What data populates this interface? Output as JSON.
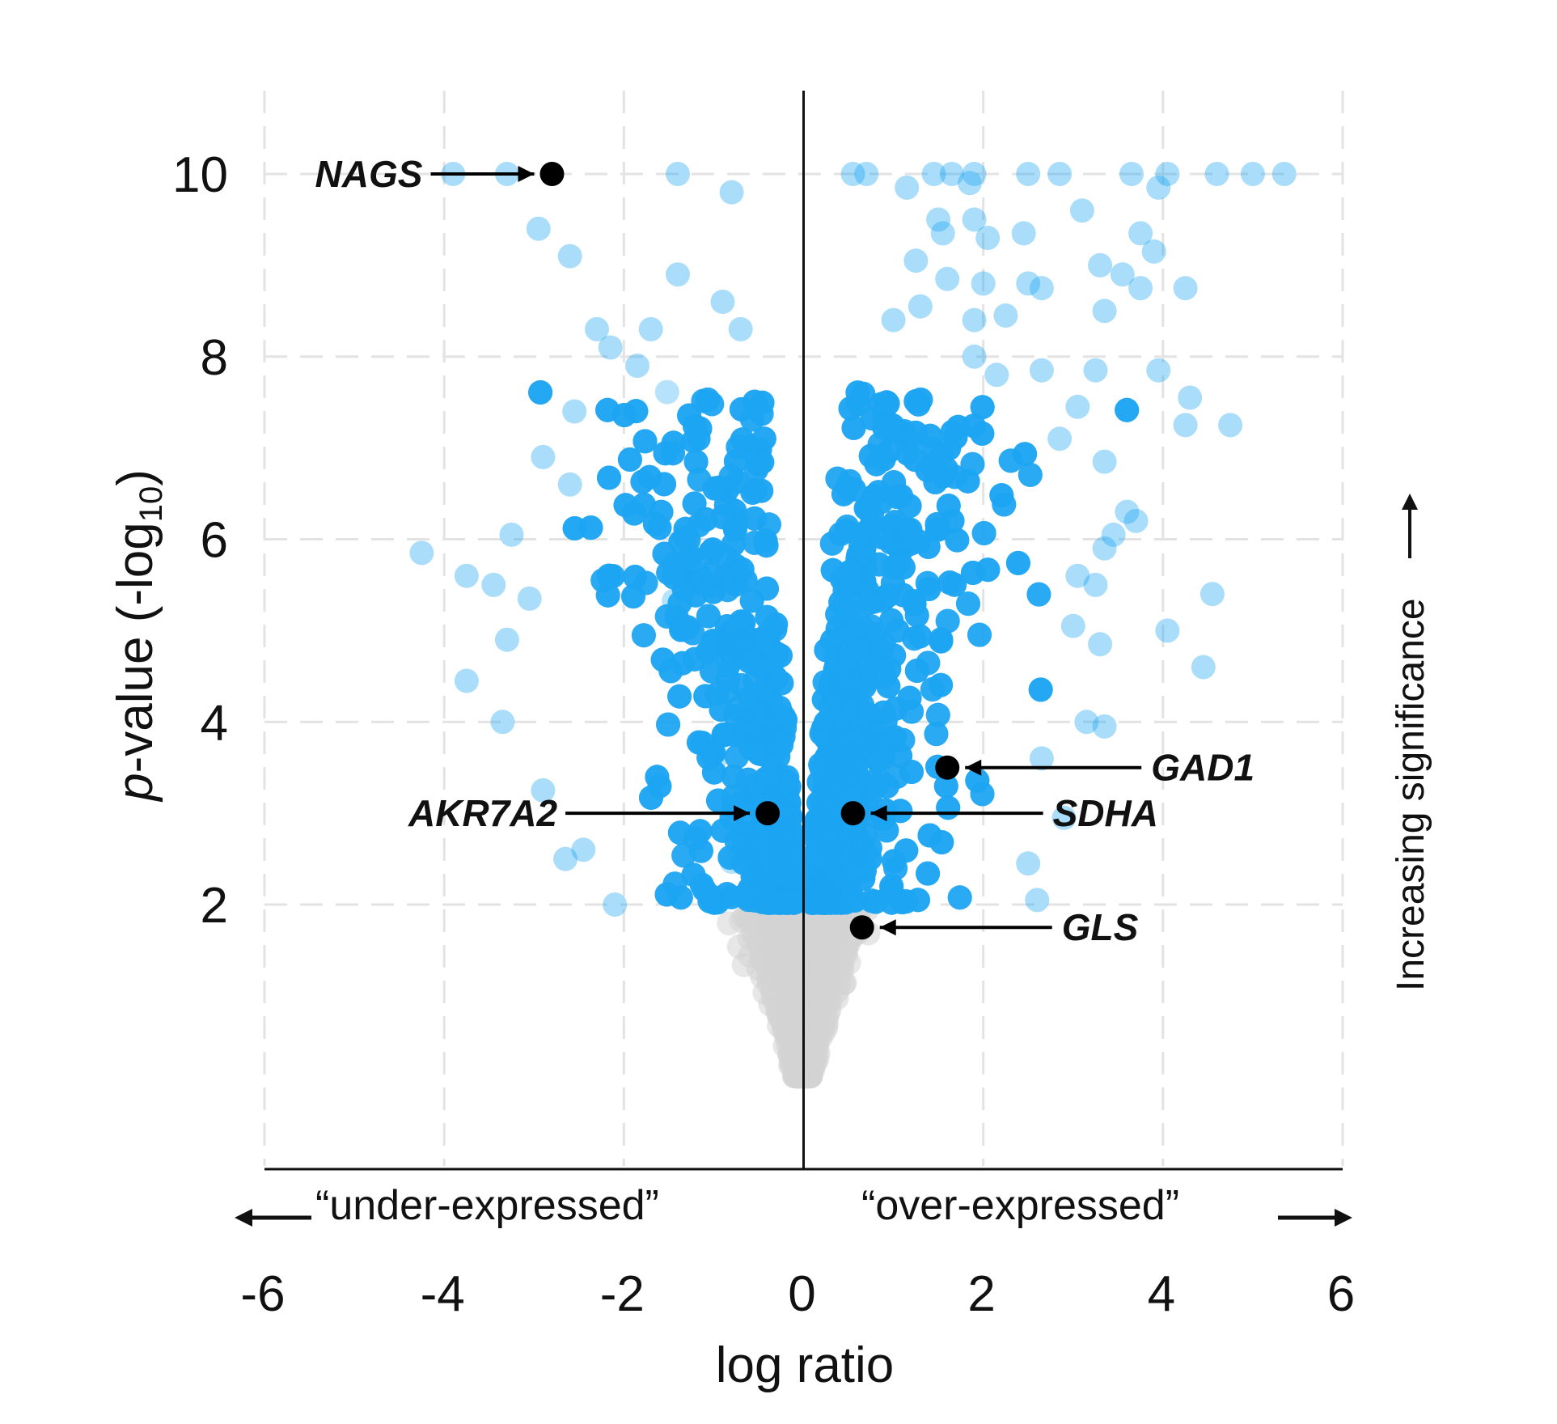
{
  "chart_data": {
    "type": "scatter",
    "subtype": "volcano",
    "title": "",
    "xlabel": "log ratio",
    "ylabel": {
      "italic": "p",
      "main": "-value (-log",
      "sub": "10",
      "close": ")"
    },
    "xlim": [
      -6,
      6
    ],
    "ylim": [
      -0.7,
      11
    ],
    "xticks": [
      -6,
      -4,
      -2,
      0,
      2,
      4,
      6
    ],
    "xtick_labels": [
      "-6",
      "-4",
      "-2",
      "0",
      "2",
      "4",
      "6"
    ],
    "yticks": [
      2,
      4,
      6,
      8,
      10
    ],
    "ytick_labels": [
      "2",
      "4",
      "6",
      "8",
      "10"
    ],
    "grid": true,
    "significance_threshold": 2,
    "direction_labels": {
      "left": "“under-expressed”",
      "right": "“over-expressed”"
    },
    "significance_label": "Increasing significance",
    "colors": {
      "significant": "#1da6f2",
      "not_significant": "#d4d4d4",
      "highlight": "#000000",
      "grid": "#e3e3e3",
      "axis": "#111111"
    },
    "point_counts": {
      "significant_dense": 9000,
      "not_significant": 6500
    },
    "highlighted_genes": [
      {
        "name": "NAGS",
        "x": -2.8,
        "y": 10.0,
        "label_side": "left"
      },
      {
        "name": "AKR7A2",
        "x": -0.4,
        "y": 3.0,
        "label_side": "left"
      },
      {
        "name": "SDHA",
        "x": 0.55,
        "y": 3.0,
        "label_side": "right"
      },
      {
        "name": "GAD1",
        "x": 1.6,
        "y": 3.5,
        "label_side": "right"
      },
      {
        "name": "GLS",
        "x": 0.65,
        "y": 1.75,
        "label_side": "right"
      }
    ],
    "outlier_points": [
      [
        -3.9,
        10.0
      ],
      [
        -3.3,
        10.0
      ],
      [
        -1.4,
        10.0
      ],
      [
        -0.8,
        9.8
      ],
      [
        0.55,
        10.0
      ],
      [
        0.7,
        10.0
      ],
      [
        1.15,
        9.85
      ],
      [
        1.45,
        10.0
      ],
      [
        1.65,
        10.0
      ],
      [
        1.85,
        9.9
      ],
      [
        1.9,
        10.0
      ],
      [
        2.5,
        10.0
      ],
      [
        2.85,
        10.0
      ],
      [
        3.65,
        10.0
      ],
      [
        3.95,
        9.85
      ],
      [
        4.05,
        10.0
      ],
      [
        4.6,
        10.0
      ],
      [
        5.0,
        10.0
      ],
      [
        5.35,
        10.0
      ],
      [
        -2.95,
        9.4
      ],
      [
        -2.6,
        9.1
      ],
      [
        -1.4,
        8.9
      ],
      [
        -0.9,
        8.6
      ],
      [
        -0.7,
        8.3
      ],
      [
        -2.3,
        8.3
      ],
      [
        -1.7,
        8.3
      ],
      [
        -2.15,
        8.1
      ],
      [
        -1.85,
        7.9
      ],
      [
        -2.55,
        7.4
      ],
      [
        -2.9,
        6.9
      ],
      [
        -2.6,
        6.6
      ],
      [
        -3.25,
        6.05
      ],
      [
        -4.25,
        5.85
      ],
      [
        -3.75,
        5.6
      ],
      [
        -3.45,
        5.5
      ],
      [
        -3.05,
        5.35
      ],
      [
        -3.3,
        4.9
      ],
      [
        -3.75,
        4.45
      ],
      [
        -3.35,
        4.0
      ],
      [
        -2.9,
        3.25
      ],
      [
        -2.45,
        2.6
      ],
      [
        -2.65,
        2.5
      ],
      [
        -2.1,
        2.0
      ],
      [
        1.5,
        9.5
      ],
      [
        1.55,
        9.35
      ],
      [
        1.9,
        9.5
      ],
      [
        2.45,
        9.35
      ],
      [
        3.1,
        9.6
      ],
      [
        2.05,
        9.3
      ],
      [
        3.75,
        9.35
      ],
      [
        3.9,
        9.15
      ],
      [
        1.25,
        9.05
      ],
      [
        1.6,
        8.85
      ],
      [
        2.0,
        8.8
      ],
      [
        2.5,
        8.8
      ],
      [
        3.3,
        9.0
      ],
      [
        3.55,
        8.9
      ],
      [
        3.75,
        8.75
      ],
      [
        4.25,
        8.75
      ],
      [
        2.65,
        8.75
      ],
      [
        1.3,
        8.55
      ],
      [
        1.9,
        8.4
      ],
      [
        2.25,
        8.45
      ],
      [
        3.35,
        8.5
      ],
      [
        1.0,
        8.4
      ],
      [
        1.9,
        8.0
      ],
      [
        2.15,
        7.8
      ],
      [
        2.65,
        7.85
      ],
      [
        3.25,
        7.85
      ],
      [
        3.95,
        7.85
      ],
      [
        4.3,
        7.55
      ],
      [
        4.25,
        7.25
      ],
      [
        4.75,
        7.25
      ],
      [
        3.05,
        7.45
      ],
      [
        2.85,
        7.1
      ],
      [
        3.35,
        6.85
      ],
      [
        3.6,
        6.3
      ],
      [
        3.45,
        6.05
      ],
      [
        3.35,
        5.9
      ],
      [
        3.7,
        6.2
      ],
      [
        3.05,
        5.6
      ],
      [
        3.25,
        5.5
      ],
      [
        3.0,
        5.05
      ],
      [
        3.3,
        4.85
      ],
      [
        4.05,
        5.0
      ],
      [
        4.55,
        5.4
      ],
      [
        4.45,
        4.6
      ],
      [
        3.15,
        4.0
      ],
      [
        3.35,
        3.95
      ],
      [
        2.65,
        3.6
      ],
      [
        2.9,
        2.95
      ],
      [
        2.5,
        2.45
      ],
      [
        2.6,
        2.05
      ]
    ]
  }
}
